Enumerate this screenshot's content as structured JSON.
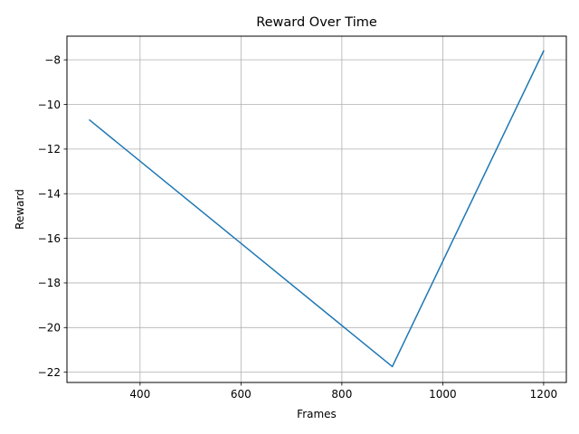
{
  "chart_data": {
    "type": "line",
    "title": "Reward Over Time",
    "xlabel": "Frames",
    "ylabel": "Reward",
    "xlim": [
      255,
      1245
    ],
    "ylim": [
      -22.46,
      -6.94
    ],
    "grid": true,
    "x_ticks": [
      400,
      600,
      800,
      1000,
      1200
    ],
    "y_ticks": [
      -22,
      -20,
      -18,
      -16,
      -14,
      -12,
      -10,
      -8
    ],
    "series": [
      {
        "color": "#1f77b4",
        "x": [
          300,
          900,
          1200
        ],
        "y": [
          -10.7,
          -21.75,
          -7.6
        ]
      }
    ]
  }
}
